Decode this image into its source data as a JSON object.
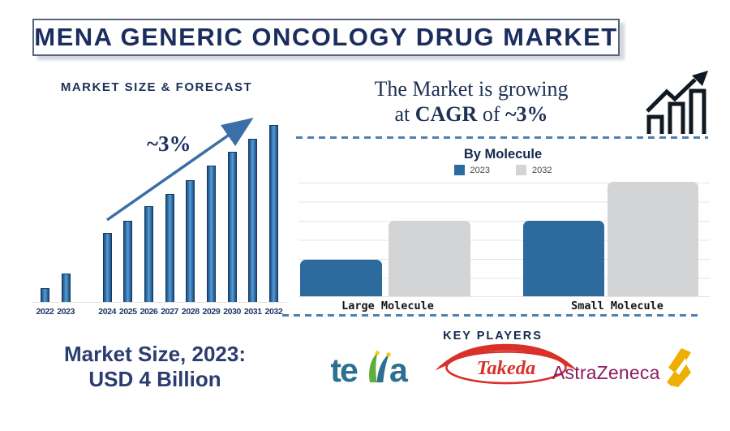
{
  "header": {
    "title": "MENA GENERIC ONCOLOGY DRUG MARKET"
  },
  "forecast": {
    "section_title": "MARKET SIZE & FORECAST",
    "growth_label": "~3%",
    "market_size_note": {
      "line1": "Market Size, 2023:",
      "line2": "USD 4 Billion"
    }
  },
  "tagline": {
    "line1": "The Market is growing",
    "line2_prefix": "at ",
    "line2_cagr": "CAGR",
    "line2_mid": " of ",
    "line2_value": "~3%"
  },
  "by_molecule": {
    "title": "By Molecule",
    "legend": [
      {
        "label": "2023",
        "color": "#2d6a9e"
      },
      {
        "label": "2032",
        "color": "#d3d4d6"
      }
    ],
    "categories": [
      "Large Molecule",
      "Small Molecule"
    ]
  },
  "key_players": {
    "title": "KEY PLAYERS",
    "logos": {
      "teva": "teva",
      "takeda": "Takeda",
      "astrazeneca": "AstraZeneca"
    }
  },
  "colors": {
    "navy_text": "#1b2d5e",
    "forecast_bar_blue": "#3579b4",
    "arrow_blue": "#3b6fa5",
    "dashed_line_blue": "#4d81b1",
    "molecule_2023_blue": "#2d6a9e",
    "molecule_2032_gray": "#d3d4d6",
    "takeda_red": "#d93129",
    "teva_teal": "#2b7090",
    "astrazeneca_magenta": "#8c1d62",
    "astrazeneca_gold": "#eeaf00"
  },
  "chart_data": [
    {
      "type": "bar",
      "title": "MARKET SIZE & FORECAST",
      "categories": [
        "2022",
        "2023",
        "2024",
        "2025",
        "2026",
        "2027",
        "2028",
        "2029",
        "2030",
        "2031",
        "2032"
      ],
      "values": [
        8,
        16,
        39,
        46,
        54,
        61,
        69,
        77,
        85,
        92,
        100
      ],
      "ylabel": "",
      "xlabel": "",
      "annotation": "~3%",
      "note": "No y-axis shown; values are relative bar heights (2032 = 100). Callout states market size 2023 = USD 4 Billion.",
      "bar_color": "#3579b4",
      "grid": false
    },
    {
      "type": "bar",
      "title": "By Molecule",
      "categories": [
        "Large Molecule",
        "Small Molecule"
      ],
      "series": [
        {
          "name": "2023",
          "values": [
            32,
            66
          ],
          "color": "#2d6a9e"
        },
        {
          "name": "2032",
          "values": [
            66,
            100
          ],
          "color": "#d3d4d6"
        }
      ],
      "note": "No y-axis shown; values are relative bar heights (max = 100).",
      "legend_position": "top",
      "grid": true
    }
  ]
}
